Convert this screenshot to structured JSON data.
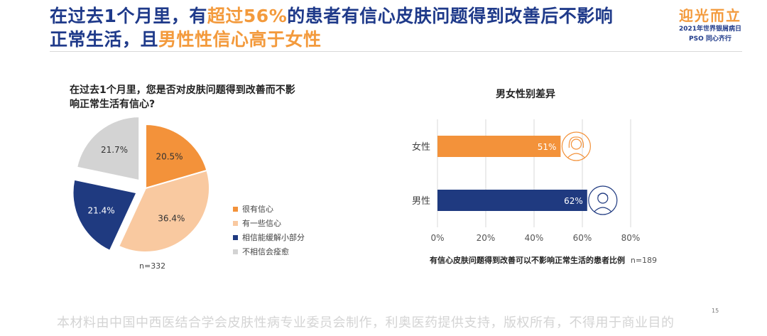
{
  "header": {
    "title_parts": [
      "在过去1个月里，有",
      "超过56%",
      "的患者有信心皮肤问题得到改善后不影响",
      "正常生活，且",
      "男性性信心高于女性"
    ],
    "logo_main": "迎光而立",
    "logo_sub": "2021年世界银屑病日",
    "logo_pso": "PSO",
    "logo_sub2": "同心齐行"
  },
  "pie_question": "在过去1个月里，您是否对皮肤问题得到改善而不影响正常生活有信心?",
  "bar_section_title": "男女性别差异",
  "bar_caption": "有信心皮肤问题得到改善可以不影响正常生活的患者比例",
  "footer": "本材料由中国中西医结合学会皮肤性病专业委员会制作，利奥医药提供支持，版权所有，不得用于商业目的",
  "page_number": "15",
  "chart_data": [
    {
      "type": "pie",
      "title": "在过去1个月里，您是否对皮肤问题得到改善而不影响正常生活有信心?",
      "n": "n=332",
      "slices": [
        {
          "label": "很有信心",
          "value": 20.5,
          "display": "20.5%",
          "color": "#f3923a",
          "exploded": false
        },
        {
          "label": "有一些信心",
          "value": 36.4,
          "display": "36.4%",
          "color": "#f9c9a0",
          "exploded": false
        },
        {
          "label": "相信能缓解小部分",
          "value": 21.4,
          "display": "21.4%",
          "color": "#1f3a80",
          "exploded": true
        },
        {
          "label": "不相信会痊愈",
          "value": 21.7,
          "display": "21.7%",
          "color": "#d3d3d3",
          "exploded": true
        }
      ]
    },
    {
      "type": "bar",
      "orientation": "horizontal",
      "title": "男女性别差异",
      "categories": [
        "女性",
        "男性"
      ],
      "values": [
        51,
        62
      ],
      "labels": [
        "51%",
        "62%"
      ],
      "colors": [
        "#f3923a",
        "#1f3a80"
      ],
      "xlim": [
        0,
        80
      ],
      "xticks": [
        "0%",
        "20%",
        "40%",
        "60%",
        "80%"
      ],
      "grid": true,
      "xlabel": "有信心皮肤问题得到改善可以不影响正常生活的患者比例",
      "n": "n=189"
    }
  ]
}
